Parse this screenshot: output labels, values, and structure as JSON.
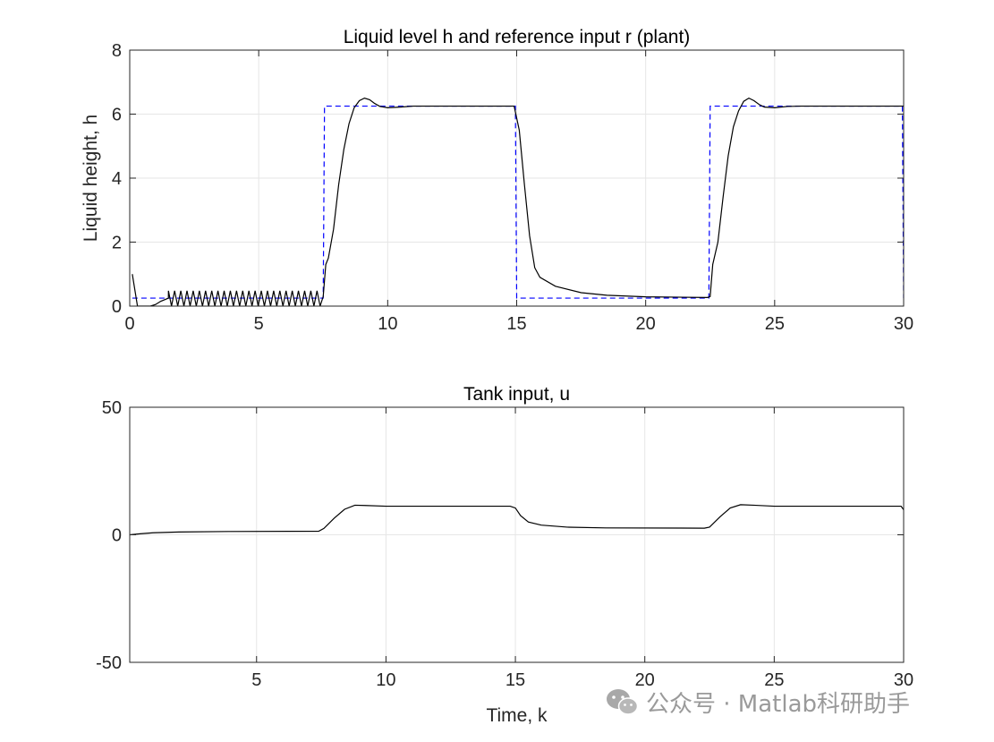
{
  "chart_data": [
    {
      "type": "line",
      "title": "Liquid level h and reference input r (plant)",
      "xlabel": "",
      "ylabel": "Liquid height, h",
      "xlim": [
        0,
        30
      ],
      "ylim": [
        0,
        8
      ],
      "xticks": [
        0,
        5,
        10,
        15,
        20,
        25,
        30
      ],
      "yticks": [
        0,
        2,
        4,
        6,
        8
      ],
      "grid": true,
      "series": [
        {
          "style": "dashed",
          "color": "#0000ff",
          "points": [
            [
              0.1,
              0.25
            ],
            [
              7.5,
              0.25
            ],
            [
              7.55,
              6.25
            ],
            [
              14.95,
              6.25
            ],
            [
              15.0,
              0.25
            ],
            [
              22.45,
              0.25
            ],
            [
              22.5,
              6.25
            ],
            [
              29.95,
              6.25
            ],
            [
              30.0,
              0.25
            ]
          ]
        },
        {
          "style": "solid",
          "color": "#000000",
          "points": [
            [
              0.1,
              1.0
            ],
            [
              0.2,
              0.5
            ],
            [
              0.3,
              0.0
            ],
            [
              0.8,
              0.0
            ],
            [
              1.0,
              0.05
            ],
            [
              1.2,
              0.15
            ],
            [
              1.5,
              0.25
            ],
            [
              7.5,
              0.3
            ],
            [
              7.6,
              1.3
            ],
            [
              7.7,
              1.5
            ],
            [
              7.9,
              2.4
            ],
            [
              8.1,
              3.8
            ],
            [
              8.3,
              4.9
            ],
            [
              8.5,
              5.7
            ],
            [
              8.7,
              6.2
            ],
            [
              8.9,
              6.42
            ],
            [
              9.1,
              6.5
            ],
            [
              9.3,
              6.45
            ],
            [
              9.5,
              6.33
            ],
            [
              9.7,
              6.24
            ],
            [
              10.0,
              6.2
            ],
            [
              10.5,
              6.22
            ],
            [
              11.0,
              6.25
            ],
            [
              14.9,
              6.25
            ],
            [
              15.1,
              5.5
            ],
            [
              15.3,
              3.8
            ],
            [
              15.5,
              2.2
            ],
            [
              15.7,
              1.2
            ],
            [
              15.9,
              0.9
            ],
            [
              16.5,
              0.62
            ],
            [
              17.5,
              0.42
            ],
            [
              18.5,
              0.34
            ],
            [
              20.0,
              0.29
            ],
            [
              22.4,
              0.27
            ],
            [
              22.5,
              0.3
            ],
            [
              22.6,
              1.3
            ],
            [
              22.8,
              2.0
            ],
            [
              23.0,
              3.4
            ],
            [
              23.2,
              4.7
            ],
            [
              23.4,
              5.6
            ],
            [
              23.6,
              6.1
            ],
            [
              23.8,
              6.4
            ],
            [
              24.0,
              6.5
            ],
            [
              24.2,
              6.42
            ],
            [
              24.4,
              6.3
            ],
            [
              24.6,
              6.22
            ],
            [
              25.0,
              6.2
            ],
            [
              25.5,
              6.24
            ],
            [
              26.0,
              6.25
            ],
            [
              30.0,
              6.25
            ]
          ]
        }
      ],
      "oscillation": {
        "x_start": 1.5,
        "x_end": 7.45,
        "period": 0.24,
        "low": 0.0,
        "high": 0.48
      }
    },
    {
      "type": "line",
      "title": "Tank input, u",
      "xlabel": "Time, k",
      "ylabel": "",
      "xlim": [
        0.1,
        30
      ],
      "ylim": [
        -50,
        50
      ],
      "xticks": [
        5,
        10,
        15,
        20,
        25,
        30
      ],
      "yticks": [
        -50,
        0,
        50
      ],
      "grid": true,
      "series": [
        {
          "style": "solid",
          "color": "#000000",
          "points": [
            [
              0.1,
              0.0
            ],
            [
              0.5,
              0.4
            ],
            [
              1.0,
              0.8
            ],
            [
              2.0,
              1.1
            ],
            [
              4.0,
              1.3
            ],
            [
              7.4,
              1.4
            ],
            [
              7.6,
              2.5
            ],
            [
              8.0,
              6.5
            ],
            [
              8.4,
              10.0
            ],
            [
              8.8,
              11.6
            ],
            [
              9.2,
              11.5
            ],
            [
              10.0,
              11.2
            ],
            [
              14.8,
              11.2
            ],
            [
              15.0,
              10.5
            ],
            [
              15.2,
              7.5
            ],
            [
              15.5,
              5.0
            ],
            [
              16.0,
              3.8
            ],
            [
              17.0,
              3.0
            ],
            [
              18.5,
              2.7
            ],
            [
              22.3,
              2.6
            ],
            [
              22.5,
              3.0
            ],
            [
              22.9,
              7.0
            ],
            [
              23.3,
              10.5
            ],
            [
              23.7,
              11.8
            ],
            [
              24.2,
              11.6
            ],
            [
              25.0,
              11.2
            ],
            [
              29.9,
              11.2
            ],
            [
              30.0,
              9.8
            ]
          ]
        }
      ]
    }
  ],
  "watermark": {
    "icon": "wechat-icon",
    "text": "公众号 · Matlab科研助手"
  }
}
